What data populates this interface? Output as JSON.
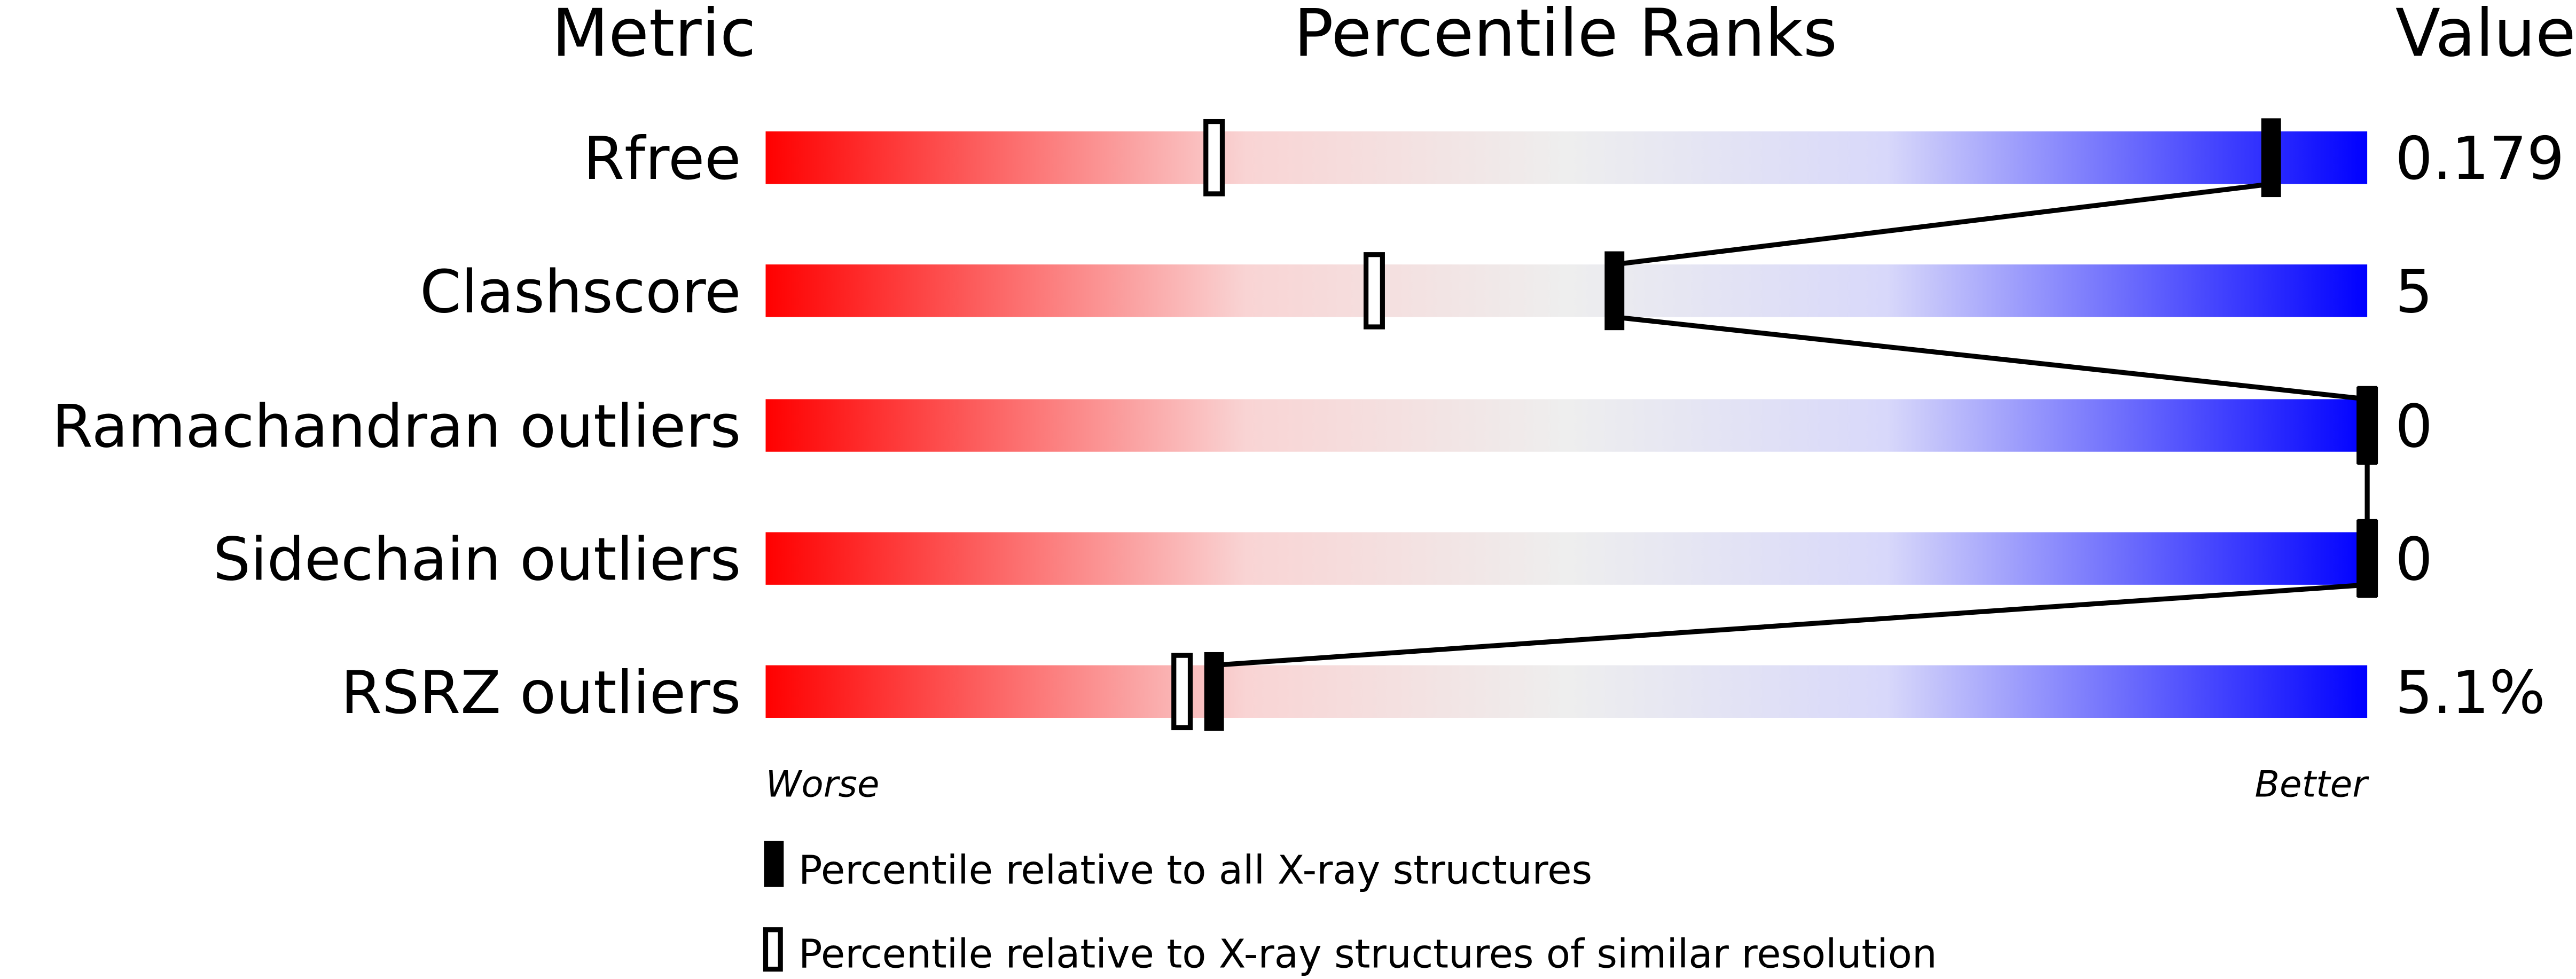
{
  "chart_data": {
    "type": "bar",
    "headers": {
      "metric": "Metric",
      "percentile": "Percentile Ranks",
      "value": "Value"
    },
    "xlim": [
      0,
      100
    ],
    "gradient_colors": [
      "#ff0000",
      "#f9d4d4",
      "#eeeeee",
      "#d8d8fa",
      "#0000ff"
    ],
    "rows": [
      {
        "metric": "Rfree",
        "value": "0.179",
        "percentile_all": 94,
        "percentile_similar": 28
      },
      {
        "metric": "Clashscore",
        "value": "5",
        "percentile_all": 53,
        "percentile_similar": 38
      },
      {
        "metric": "Ramachandran outliers",
        "value": "0",
        "percentile_all": 100,
        "percentile_similar": 100
      },
      {
        "metric": "Sidechain outliers",
        "value": "0",
        "percentile_all": 100,
        "percentile_similar": 100
      },
      {
        "metric": "RSRZ outliers",
        "value": "5.1%",
        "percentile_all": 28,
        "percentile_similar": 26
      }
    ],
    "axis_labels": {
      "left": "Worse",
      "right": "Better"
    },
    "legend": {
      "filled": "Percentile relative to all X-ray structures",
      "open": "Percentile relative to X-ray structures of similar resolution"
    }
  }
}
